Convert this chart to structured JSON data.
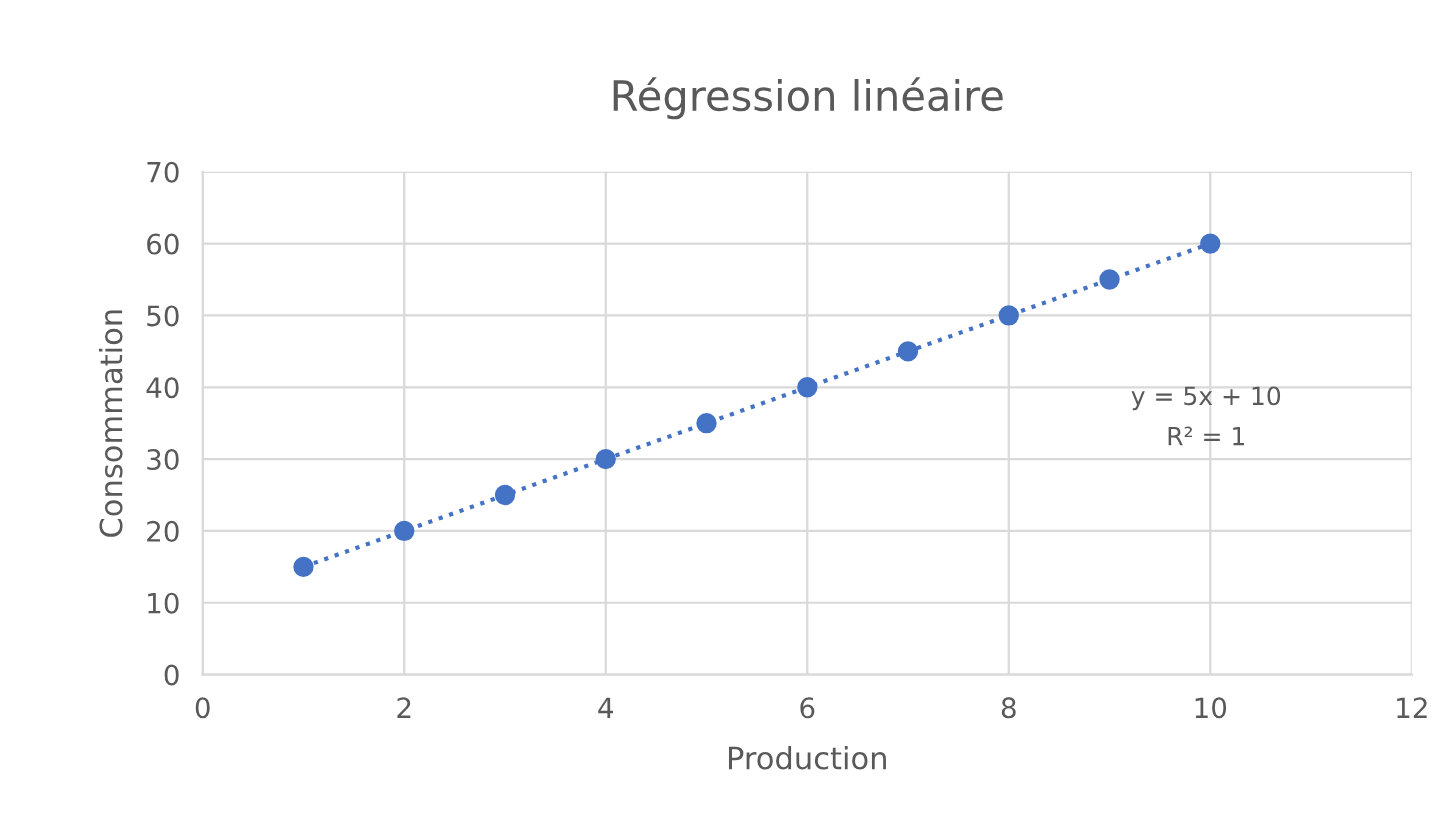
{
  "chart_data": {
    "type": "scatter",
    "title": "Régression linéaire",
    "xlabel": "Production",
    "ylabel": "Consommation",
    "series": [
      {
        "color": "#4472c4",
        "marker": "circle",
        "x": [
          1,
          2,
          3,
          4,
          5,
          6,
          7,
          8,
          9,
          10
        ],
        "values": [
          15,
          20,
          25,
          30,
          35,
          40,
          45,
          50,
          55,
          60
        ]
      },
      {
        "type": "line",
        "color": "#4472c4",
        "line_style": "dotted",
        "x": [
          1,
          10
        ],
        "values": [
          15,
          60
        ]
      }
    ],
    "annotations": [
      "y = 5x + 10",
      "R² = 1"
    ],
    "xlim": [
      0,
      12
    ],
    "xticks": [
      0,
      2,
      4,
      6,
      8,
      10,
      12
    ],
    "ylim": [
      0,
      70
    ],
    "yticks": [
      0,
      10,
      20,
      30,
      40,
      50,
      60,
      70
    ],
    "grid": true
  }
}
